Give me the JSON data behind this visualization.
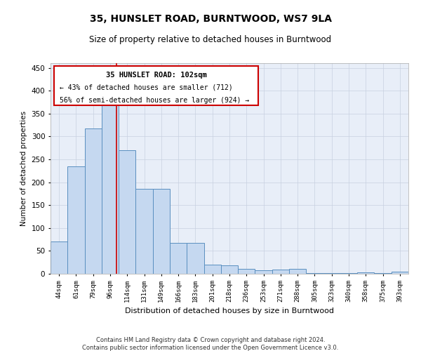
{
  "title": "35, HUNSLET ROAD, BURNTWOOD, WS7 9LA",
  "subtitle": "Size of property relative to detached houses in Burntwood",
  "xlabel": "Distribution of detached houses by size in Burntwood",
  "ylabel": "Number of detached properties",
  "categories": [
    "44sqm",
    "61sqm",
    "79sqm",
    "96sqm",
    "114sqm",
    "131sqm",
    "149sqm",
    "166sqm",
    "183sqm",
    "201sqm",
    "218sqm",
    "236sqm",
    "253sqm",
    "271sqm",
    "288sqm",
    "305sqm",
    "323sqm",
    "340sqm",
    "358sqm",
    "375sqm",
    "393sqm"
  ],
  "values": [
    70,
    235,
    317,
    370,
    270,
    185,
    185,
    67,
    67,
    20,
    18,
    10,
    7,
    9,
    10,
    1,
    1,
    1,
    3,
    1,
    4
  ],
  "bar_color": "#c5d8f0",
  "bar_edge_color": "#5a8fc0",
  "annotation_title": "35 HUNSLET ROAD: 102sqm",
  "annotation_line1": "← 43% of detached houses are smaller (712)",
  "annotation_line2": "56% of semi-detached houses are larger (924) →",
  "annotation_box_color": "#ffffff",
  "annotation_box_edge": "#cc0000",
  "red_line_color": "#cc0000",
  "red_line_x": 3.35,
  "ylim": [
    0,
    460
  ],
  "yticks": [
    0,
    50,
    100,
    150,
    200,
    250,
    300,
    350,
    400,
    450
  ],
  "footer_line1": "Contains HM Land Registry data © Crown copyright and database right 2024.",
  "footer_line2": "Contains public sector information licensed under the Open Government Licence v3.0.",
  "background_color": "#ffffff",
  "plot_bg_color": "#e8eef8",
  "grid_color": "#c8d0e0"
}
